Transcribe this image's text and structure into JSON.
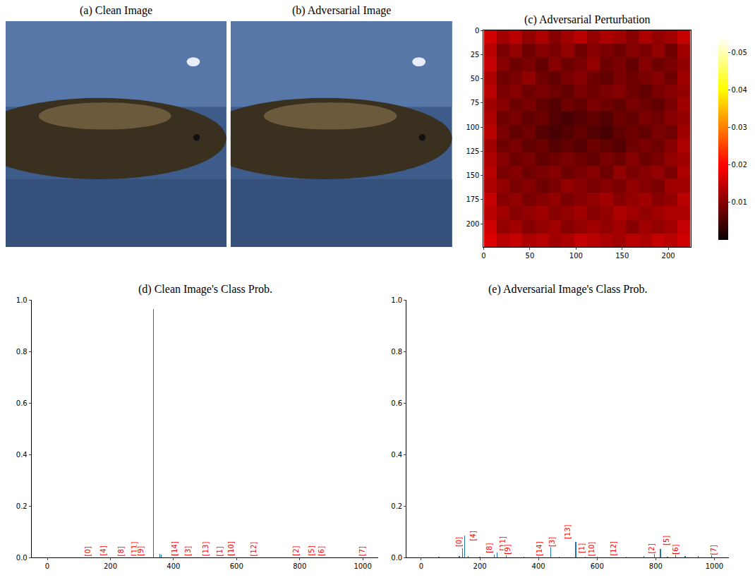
{
  "chart_data": [
    {
      "type": "image",
      "title": "(a) Clean Image"
    },
    {
      "type": "image",
      "title": "(b) Adversarial Image"
    },
    {
      "type": "heatmap",
      "title": "(c) Adversarial Perturbation",
      "x": [
        7,
        21,
        35,
        49,
        63,
        77,
        91,
        105,
        119,
        133,
        147,
        161,
        175,
        189,
        203,
        217
      ],
      "y": [
        7,
        21,
        35,
        49,
        63,
        77,
        91,
        105,
        119,
        133,
        147,
        161,
        175,
        189,
        203,
        217
      ],
      "xlim": [
        0,
        224
      ],
      "ylim": [
        224,
        0
      ],
      "xticks": [
        0,
        50,
        100,
        150,
        200
      ],
      "yticks": [
        0,
        25,
        50,
        75,
        100,
        125,
        150,
        175,
        200
      ],
      "cells": [
        [
          0.016,
          0.012,
          0.014,
          0.011,
          0.013,
          0.01,
          0.012,
          0.014,
          0.011,
          0.013,
          0.012,
          0.01,
          0.013,
          0.011,
          0.012,
          0.015
        ],
        [
          0.014,
          0.009,
          0.011,
          0.008,
          0.01,
          0.009,
          0.011,
          0.008,
          0.01,
          0.009,
          0.008,
          0.01,
          0.009,
          0.011,
          0.008,
          0.012
        ],
        [
          0.015,
          0.01,
          0.008,
          0.009,
          0.007,
          0.01,
          0.008,
          0.009,
          0.011,
          0.008,
          0.009,
          0.007,
          0.01,
          0.008,
          0.009,
          0.011
        ],
        [
          0.013,
          0.008,
          0.009,
          0.011,
          0.008,
          0.007,
          0.009,
          0.01,
          0.008,
          0.007,
          0.009,
          0.008,
          0.009,
          0.01,
          0.008,
          0.012
        ],
        [
          0.014,
          0.009,
          0.01,
          0.008,
          0.009,
          0.008,
          0.007,
          0.009,
          0.008,
          0.009,
          0.01,
          0.008,
          0.007,
          0.009,
          0.01,
          0.011
        ],
        [
          0.012,
          0.01,
          0.008,
          0.009,
          0.007,
          0.006,
          0.008,
          0.007,
          0.009,
          0.008,
          0.007,
          0.009,
          0.008,
          0.007,
          0.009,
          0.012
        ],
        [
          0.013,
          0.008,
          0.009,
          0.007,
          0.008,
          0.006,
          0.005,
          0.006,
          0.007,
          0.006,
          0.008,
          0.007,
          0.009,
          0.008,
          0.01,
          0.011
        ],
        [
          0.014,
          0.009,
          0.007,
          0.008,
          0.006,
          0.005,
          0.006,
          0.007,
          0.006,
          0.005,
          0.007,
          0.008,
          0.007,
          0.009,
          0.008,
          0.012
        ],
        [
          0.012,
          0.008,
          0.009,
          0.007,
          0.008,
          0.006,
          0.007,
          0.006,
          0.008,
          0.007,
          0.006,
          0.008,
          0.009,
          0.008,
          0.01,
          0.013
        ],
        [
          0.013,
          0.01,
          0.008,
          0.009,
          0.007,
          0.008,
          0.009,
          0.008,
          0.007,
          0.009,
          0.008,
          0.01,
          0.008,
          0.009,
          0.011,
          0.012
        ],
        [
          0.014,
          0.009,
          0.01,
          0.008,
          0.009,
          0.01,
          0.008,
          0.009,
          0.01,
          0.008,
          0.011,
          0.009,
          0.01,
          0.011,
          0.009,
          0.013
        ],
        [
          0.013,
          0.011,
          0.009,
          0.01,
          0.008,
          0.009,
          0.011,
          0.01,
          0.009,
          0.01,
          0.009,
          0.011,
          0.01,
          0.009,
          0.012,
          0.012
        ],
        [
          0.015,
          0.01,
          0.011,
          0.009,
          0.01,
          0.011,
          0.009,
          0.01,
          0.011,
          0.012,
          0.01,
          0.011,
          0.012,
          0.01,
          0.011,
          0.014
        ],
        [
          0.014,
          0.012,
          0.01,
          0.011,
          0.012,
          0.01,
          0.011,
          0.012,
          0.01,
          0.011,
          0.013,
          0.012,
          0.011,
          0.012,
          0.013,
          0.013
        ],
        [
          0.016,
          0.011,
          0.012,
          0.01,
          0.011,
          0.012,
          0.01,
          0.011,
          0.012,
          0.011,
          0.012,
          0.01,
          0.012,
          0.011,
          0.012,
          0.015
        ],
        [
          0.017,
          0.014,
          0.015,
          0.013,
          0.014,
          0.012,
          0.013,
          0.015,
          0.014,
          0.013,
          0.012,
          0.014,
          0.013,
          0.015,
          0.014,
          0.016
        ]
      ],
      "color_range": [
        0,
        0.054
      ],
      "color_ticks": [
        0.01,
        0.02,
        0.03,
        0.04,
        0.05
      ]
    },
    {
      "type": "bar",
      "title": "(d) Clean Image's Class Prob.",
      "x": [
        336,
        357,
        361
      ],
      "values": [
        0.965,
        0.015,
        0.01
      ],
      "color": "#1f77b4",
      "grid": false,
      "xlim": [
        -50,
        1050
      ],
      "xticks": [
        0,
        200,
        400,
        600,
        800,
        1000
      ],
      "ylim": [
        0,
        1
      ],
      "yticks": [
        {
          "value": 0,
          "label": "0.0"
        },
        {
          "value": 0.2,
          "label": "0.2"
        },
        {
          "value": 0.4,
          "label": "0.4"
        },
        {
          "value": 0.6,
          "label": "0.6"
        },
        {
          "value": 0.8,
          "label": "0.8"
        },
        {
          "value": 1,
          "label": "1.0"
        }
      ],
      "annotations": [
        {
          "text": "[0]",
          "x": 143,
          "y": 0
        },
        {
          "text": "[4]",
          "x": 161,
          "y": 0
        },
        {
          "text": "[8]",
          "x": 248,
          "y": 0
        },
        {
          "text": "[11]",
          "x": 262,
          "y": 0
        },
        {
          "text": "[9]",
          "x": 295,
          "y": 0
        },
        {
          "text": "[14]",
          "x": 403,
          "y": 0
        },
        {
          "text": "[3]",
          "x": 445,
          "y": 0
        },
        {
          "text": "[1]",
          "x": 532,
          "y": 0
        },
        {
          "text": "[13]",
          "x": 517,
          "y": 0
        },
        {
          "text": "[10]",
          "x": 582,
          "y": 0
        },
        {
          "text": "[12]",
          "x": 655,
          "y": 0
        },
        {
          "text": "[2]",
          "x": 801,
          "y": 0
        },
        {
          "text": "[5]",
          "x": 821,
          "y": 0
        },
        {
          "text": "[6]",
          "x": 868,
          "y": 0
        },
        {
          "text": "[7]",
          "x": 998,
          "y": 0
        }
      ]
    },
    {
      "type": "bar",
      "title": "(e) Adversarial Image's Class Prob.",
      "x": [
        60,
        130,
        140,
        148,
        160,
        200,
        250,
        258,
        290,
        350,
        400,
        441,
        470,
        527,
        560,
        600,
        700,
        760,
        796,
        816,
        840,
        868,
        900,
        945,
        990
      ],
      "values": [
        0.004,
        0.005,
        0.035,
        0.085,
        0.006,
        0.003,
        0.012,
        0.02,
        0.008,
        0.004,
        0.003,
        0.04,
        0.004,
        0.06,
        0.003,
        0.003,
        0.004,
        0.005,
        0.055,
        0.032,
        0.004,
        0.022,
        0.006,
        0.005,
        0.012
      ],
      "color": "#1f77b4",
      "grid": false,
      "xlim": [
        -50,
        1050
      ],
      "xticks": [
        0,
        200,
        400,
        600,
        800,
        1000
      ],
      "ylim": [
        0,
        1
      ],
      "yticks": [
        {
          "value": 0,
          "label": "0.0"
        },
        {
          "value": 0.2,
          "label": "0.2"
        },
        {
          "value": 0.4,
          "label": "0.4"
        },
        {
          "value": 0.6,
          "label": "0.6"
        },
        {
          "value": 0.8,
          "label": "0.8"
        },
        {
          "value": 1,
          "label": "1.0"
        }
      ],
      "annotations": [
        {
          "text": "[0]",
          "x": 143,
          "y": 0.035
        },
        {
          "text": "[4]",
          "x": 161,
          "y": 0.06
        },
        {
          "text": "[8]",
          "x": 248,
          "y": 0.01
        },
        {
          "text": "[11]",
          "x": 262,
          "y": 0.02
        },
        {
          "text": "[9]",
          "x": 295,
          "y": 0.005
        },
        {
          "text": "[14]",
          "x": 403,
          "y": 0
        },
        {
          "text": "[3]",
          "x": 445,
          "y": 0.035
        },
        {
          "text": "[1]",
          "x": 532,
          "y": 0.012
        },
        {
          "text": "[13]",
          "x": 517,
          "y": 0.065
        },
        {
          "text": "[10]",
          "x": 582,
          "y": 0
        },
        {
          "text": "[12]",
          "x": 655,
          "y": 0
        },
        {
          "text": "[2]",
          "x": 801,
          "y": 0.01
        },
        {
          "text": "[5]",
          "x": 821,
          "y": 0.04
        },
        {
          "text": "[6]",
          "x": 868,
          "y": 0.005
        },
        {
          "text": "[7]",
          "x": 998,
          "y": 0.003
        }
      ]
    }
  ]
}
